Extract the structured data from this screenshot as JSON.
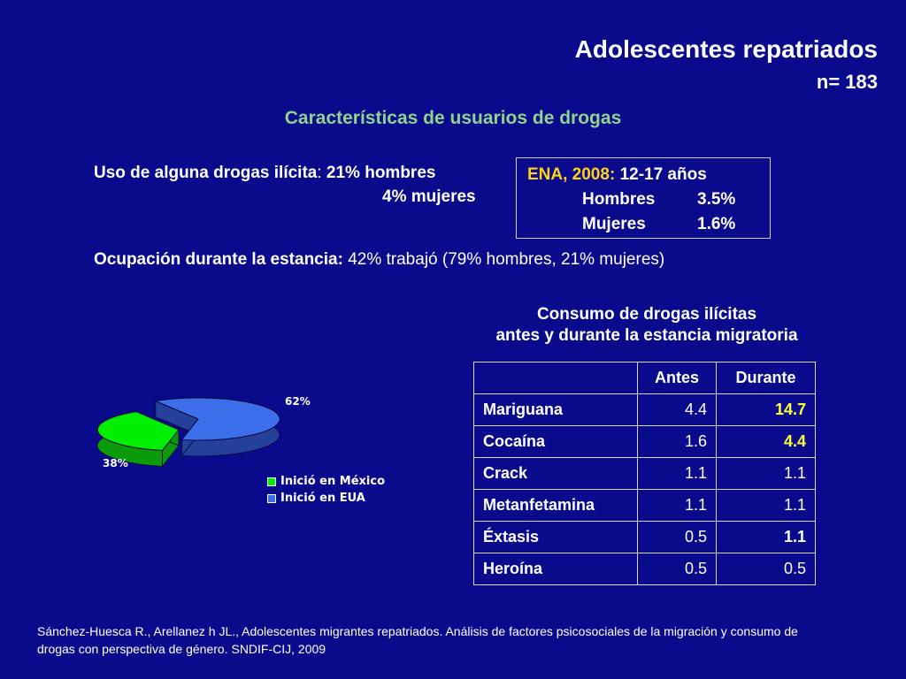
{
  "header": {
    "title": "Adolescentes repatriados",
    "n_line": "n= 183",
    "subtitle": "Características de usuarios de drogas"
  },
  "drug_use": {
    "label": "Uso de alguna drogas ilícita",
    "colon": ": ",
    "men": "21% hombres",
    "women": "4% mujeres"
  },
  "ena": {
    "label": "ENA, 2008:",
    "ages": "12-17 años",
    "rows": [
      {
        "name": "Hombres",
        "value": "3.5%"
      },
      {
        "name": "Mujeres",
        "value": "1.6%"
      }
    ]
  },
  "occupation": {
    "label": "Ocupación durante la estancia:",
    "value": "42% trabajó (79% hombres, 21% mujeres)"
  },
  "table": {
    "title_line1": "Consumo de drogas ilícitas",
    "title_line2": "antes y durante la estancia migratoria",
    "headers": [
      "",
      "Antes",
      "Durante"
    ],
    "rows": [
      {
        "name": "Mariguana",
        "antes": "4.4",
        "durante": "14.7",
        "highlight": "yellow"
      },
      {
        "name": "Cocaína",
        "antes": "1.6",
        "durante": "4.4",
        "highlight": "yellow"
      },
      {
        "name": "Crack",
        "antes": "1.1",
        "durante": "1.1",
        "highlight": "none"
      },
      {
        "name": "Metanfetamina",
        "antes": "1.1",
        "durante": "1.1",
        "highlight": "none"
      },
      {
        "name": "Éxtasis",
        "antes": "0.5",
        "durante": "1.1",
        "highlight": "white"
      },
      {
        "name": "Heroína",
        "antes": "0.5",
        "durante": "0.5",
        "highlight": "none"
      }
    ]
  },
  "chart_data": {
    "type": "pie",
    "title": "",
    "labels": [
      "Inició en México",
      "Inició en EUA"
    ],
    "values": [
      38,
      62
    ],
    "data_labels": [
      "38%",
      "62%"
    ],
    "colors": [
      "#00ee00",
      "#3b6ee8"
    ],
    "legend_position": "bottom-right"
  },
  "footer": {
    "line1": "Sánchez-Huesca R., Arellanez h JL., Adolescentes migrantes repatriados. Análisis de factores psicosociales de la migración y consumo de",
    "line2": "drogas con perspectiva de género. SNDIF-CIJ, 2009"
  }
}
